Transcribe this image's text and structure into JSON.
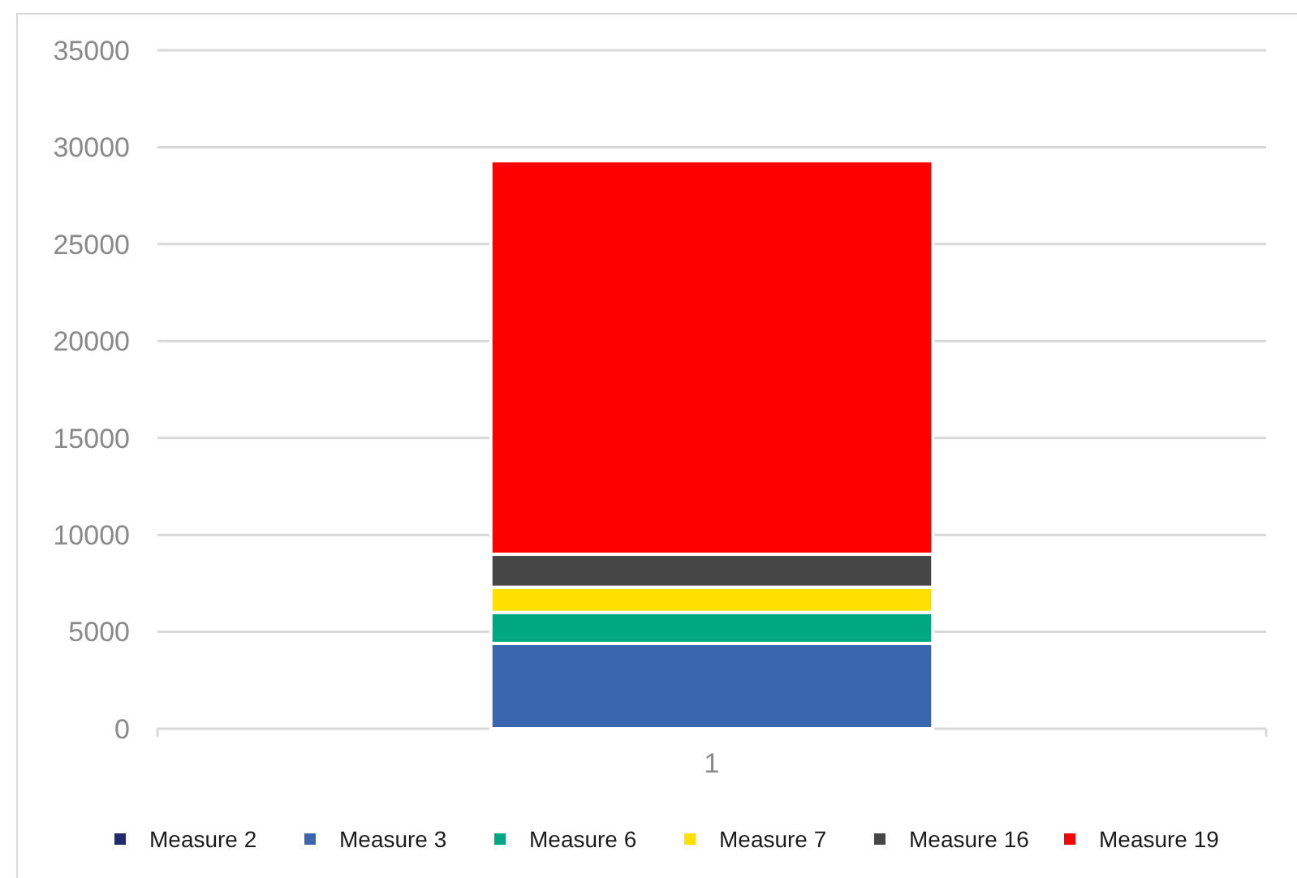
{
  "chart_data": {
    "type": "bar",
    "stacked": true,
    "categories": [
      "1"
    ],
    "series": [
      {
        "name": "Measure 2",
        "color": "#1f2b6e",
        "values": [
          0
        ]
      },
      {
        "name": "Measure 3",
        "color": "#3a66b0",
        "values": [
          4400
        ]
      },
      {
        "name": "Measure 6",
        "color": "#00a881",
        "values": [
          1600
        ]
      },
      {
        "name": "Measure 7",
        "color": "#ffe000",
        "values": [
          1300
        ]
      },
      {
        "name": "Measure 16",
        "color": "#464646",
        "values": [
          1700
        ]
      },
      {
        "name": "Measure 19",
        "color": "#ff0000",
        "values": [
          20300
        ]
      }
    ],
    "ylim": [
      0,
      35000
    ],
    "yticks": [
      0,
      5000,
      10000,
      15000,
      20000,
      25000,
      30000,
      35000
    ],
    "grid": "y",
    "legend": "bottom"
  }
}
